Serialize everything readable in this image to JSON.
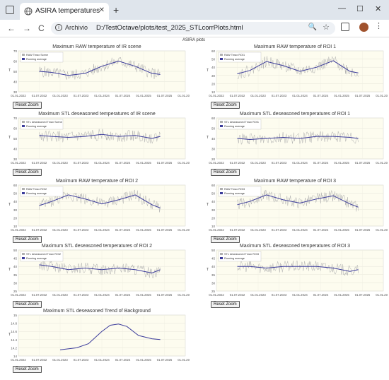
{
  "browser": {
    "tab_title": "ASIRA temperatures",
    "tab_close": "✕",
    "new_tab": "+",
    "window_controls": [
      "—",
      "☐",
      "✕"
    ],
    "site_label": "Archivio",
    "url": "D:/TestOctave/plots/test_2025_STLcorrPlots.html",
    "nav": {
      "back": "←",
      "forward": "→",
      "reload": "C"
    },
    "zoom_icon": "🔍",
    "star_icon": "☆",
    "menu_icon": "⋮"
  },
  "page": {
    "broken_image_alt": "ASIRA plots",
    "reset_label": "Reset Zoom"
  },
  "x_ticks": [
    "01.01.2022",
    "01.07.2022",
    "01.01.2023",
    "01.07.2023",
    "01.01.2024",
    "01.07.2024",
    "01.01.2025",
    "01.07.2025",
    "01.01.2026"
  ],
  "chart_data": [
    {
      "type": "line",
      "title": "Maximum RAW temperature of IR scene",
      "ylabel": "T",
      "ylim": [
        30,
        70
      ],
      "yticks": [
        30,
        40,
        50,
        60,
        70
      ],
      "legend": [
        "RAW Tmax Scene",
        "Running average"
      ],
      "legend_position": "top-left",
      "series": [
        {
          "name": "RAW Tmax Scene",
          "color": "#b0b0b0"
        },
        {
          "name": "Running average",
          "color": "#3b3b9b",
          "x": [
            0.125,
            0.2,
            0.3,
            0.4,
            0.5,
            0.6,
            0.7,
            0.8,
            0.85
          ],
          "y": [
            50,
            49,
            46,
            48,
            55,
            60,
            55,
            48,
            47
          ]
        }
      ]
    },
    {
      "type": "line",
      "title": "Maximum RAW temperature of ROI 1",
      "ylabel": "T",
      "ylim": [
        10,
        60
      ],
      "yticks": [
        10,
        20,
        30,
        40,
        50,
        60
      ],
      "legend": [
        "RAW Tmax ROI1",
        "Running average"
      ],
      "legend_position": "top-left",
      "series": [
        {
          "name": "RAW Tmax ROI1",
          "color": "#b0b0b0"
        },
        {
          "name": "Running average",
          "color": "#3b3b9b",
          "x": [
            0.125,
            0.2,
            0.3,
            0.4,
            0.5,
            0.6,
            0.7,
            0.8,
            0.85
          ],
          "y": [
            32,
            36,
            47,
            42,
            35,
            40,
            48,
            35,
            33
          ]
        }
      ]
    },
    {
      "type": "line",
      "title": "Maximum STL deseasoned temperatures of IR scene",
      "ylabel": "T",
      "ylim": [
        30,
        70
      ],
      "yticks": [
        30,
        40,
        50,
        60,
        70
      ],
      "legend": [
        "STL deseasoned Tmax Scene",
        "Running average"
      ],
      "legend_position": "top-left",
      "series": [
        {
          "name": "STL deseasoned Tmax Scene",
          "color": "#b0b0b0"
        },
        {
          "name": "Running average",
          "color": "#3b3b9b",
          "x": [
            0.125,
            0.2,
            0.3,
            0.4,
            0.5,
            0.6,
            0.7,
            0.8,
            0.85
          ],
          "y": [
            53,
            52,
            51,
            52,
            54,
            52,
            53,
            50,
            52
          ]
        }
      ]
    },
    {
      "type": "line",
      "title": "Maximum STL deseasoned temperatures of ROI 1",
      "ylabel": "T",
      "ylim": [
        20,
        60
      ],
      "yticks": [
        20,
        30,
        40,
        50,
        60
      ],
      "legend": [
        "STL deseasoned Tmax ROI1",
        "Running average"
      ],
      "legend_position": "top-left",
      "series": [
        {
          "name": "STL deseasoned Tmax ROI1",
          "color": "#b0b0b0"
        },
        {
          "name": "Running average",
          "color": "#3b3b9b",
          "x": [
            0.125,
            0.2,
            0.3,
            0.4,
            0.5,
            0.6,
            0.7,
            0.8,
            0.85
          ],
          "y": [
            40,
            39,
            40,
            41,
            40,
            42,
            42,
            41,
            40
          ]
        }
      ]
    },
    {
      "type": "line",
      "title": "Maximum RAW temperature of ROI 2",
      "ylabel": "T",
      "ylim": [
        10,
        60
      ],
      "yticks": [
        10,
        20,
        30,
        40,
        50,
        60
      ],
      "legend": [
        "RAW Tmax ROI2",
        "Running average"
      ],
      "legend_position": "top-left",
      "series": [
        {
          "name": "RAW Tmax ROI2",
          "color": "#b0b0b0"
        },
        {
          "name": "Running average",
          "color": "#3b3b9b",
          "x": [
            0.125,
            0.2,
            0.3,
            0.4,
            0.5,
            0.6,
            0.7,
            0.8,
            0.85
          ],
          "y": [
            35,
            40,
            48,
            43,
            37,
            42,
            48,
            36,
            32
          ]
        }
      ]
    },
    {
      "type": "line",
      "title": "Maximum RAW temperature of ROI 3",
      "ylabel": "T",
      "ylim": [
        10,
        60
      ],
      "yticks": [
        10,
        20,
        30,
        40,
        50,
        60
      ],
      "legend": [
        "RAW Tmax ROI3",
        "Running average"
      ],
      "legend_position": "top-left",
      "series": [
        {
          "name": "RAW Tmax ROI3",
          "color": "#b0b0b0"
        },
        {
          "name": "Running average",
          "color": "#3b3b9b",
          "x": [
            0.125,
            0.2,
            0.3,
            0.4,
            0.5,
            0.6,
            0.7,
            0.8,
            0.85
          ],
          "y": [
            36,
            40,
            48,
            42,
            38,
            43,
            47,
            37,
            33
          ]
        }
      ]
    },
    {
      "type": "line",
      "title": "Maximum STL deseasoned temperatures of ROI 2",
      "ylabel": "T",
      "ylim": [
        25,
        50
      ],
      "yticks": [
        25,
        30,
        35,
        40,
        45,
        50
      ],
      "legend": [
        "STL deseasoned Tmax ROI2",
        "Running average"
      ],
      "legend_position": "top-left",
      "series": [
        {
          "name": "STL deseasoned Tmax ROI2",
          "color": "#b0b0b0"
        },
        {
          "name": "Running average",
          "color": "#3b3b9b",
          "x": [
            0.125,
            0.2,
            0.3,
            0.4,
            0.5,
            0.6,
            0.7,
            0.8,
            0.85
          ],
          "y": [
            41,
            40,
            38,
            39,
            38,
            39,
            38,
            36,
            38
          ]
        }
      ]
    },
    {
      "type": "line",
      "title": "Maximum STL deseasoned temperatures of ROI 3",
      "ylabel": "T",
      "ylim": [
        25,
        50
      ],
      "yticks": [
        25,
        30,
        35,
        40,
        45,
        50
      ],
      "legend": [
        "STL deseasoned Tmax ROI3",
        "Running average"
      ],
      "legend_position": "top-left",
      "series": [
        {
          "name": "STL deseasoned Tmax ROI3",
          "color": "#b0b0b0"
        },
        {
          "name": "Running average",
          "color": "#3b3b9b",
          "x": [
            0.125,
            0.2,
            0.3,
            0.4,
            0.5,
            0.6,
            0.7,
            0.8,
            0.85
          ],
          "y": [
            40,
            40,
            39,
            40,
            40,
            40,
            39,
            37,
            38
          ]
        }
      ]
    },
    {
      "type": "line",
      "title": "Maximum STL deseasoned Trend of Background",
      "ylabel": "T",
      "ylim": [
        14.0,
        15.0
      ],
      "yticks": [
        14.0,
        14.2,
        14.4,
        14.6,
        14.8,
        15.0
      ],
      "legend": [],
      "series": [
        {
          "name": "Trend",
          "color": "#3b3b9b",
          "x": [
            0.25,
            0.35,
            0.42,
            0.5,
            0.55,
            0.6,
            0.65,
            0.72,
            0.8,
            0.85
          ],
          "y": [
            14.15,
            14.2,
            14.3,
            14.6,
            14.75,
            14.78,
            14.72,
            14.5,
            14.42,
            14.4
          ]
        }
      ]
    }
  ]
}
